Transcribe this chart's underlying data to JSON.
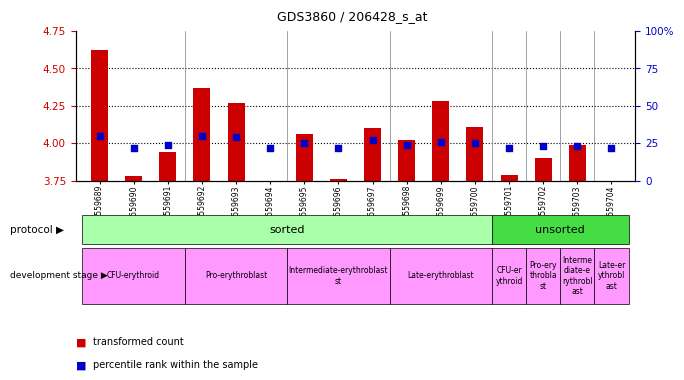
{
  "title": "GDS3860 / 206428_s_at",
  "samples": [
    "GSM559689",
    "GSM559690",
    "GSM559691",
    "GSM559692",
    "GSM559693",
    "GSM559694",
    "GSM559695",
    "GSM559696",
    "GSM559697",
    "GSM559698",
    "GSM559699",
    "GSM559700",
    "GSM559701",
    "GSM559702",
    "GSM559703",
    "GSM559704"
  ],
  "bar_values": [
    4.62,
    3.78,
    3.94,
    4.37,
    4.27,
    3.75,
    4.06,
    3.76,
    4.1,
    4.02,
    4.28,
    4.11,
    3.79,
    3.9,
    3.99,
    3.75
  ],
  "dot_values": [
    30,
    22,
    24,
    30,
    29,
    22,
    25,
    22,
    27,
    24,
    26,
    25,
    22,
    23,
    23,
    22
  ],
  "ylim": [
    3.75,
    4.75
  ],
  "y2lim": [
    0,
    100
  ],
  "yticks": [
    3.75,
    4.0,
    4.25,
    4.5,
    4.75
  ],
  "y2ticks": [
    0,
    25,
    50,
    75,
    100
  ],
  "bar_color": "#cc0000",
  "dot_color": "#0000cc",
  "bar_bottom": 3.75,
  "protocol_sorted_color": "#aaffaa",
  "protocol_unsorted_color": "#44dd44",
  "dev_stage_color": "#ff99ff",
  "legend_bar_label": "transformed count",
  "legend_dot_label": "percentile rank within the sample",
  "tick_color_left": "#cc0000",
  "tick_color_right": "#0000cc",
  "grid_dotted_at": [
    4.0,
    4.25,
    4.5
  ],
  "separators": [
    2.5,
    5.5,
    8.5,
    11.5,
    12.5,
    13.5,
    14.5
  ],
  "dev_stages": [
    {
      "label": "CFU-erythroid",
      "start": 0,
      "end": 2
    },
    {
      "label": "Pro-erythroblast",
      "start": 3,
      "end": 5
    },
    {
      "label": "Intermediate-erythroblast\nst",
      "start": 6,
      "end": 8
    },
    {
      "label": "Late-erythroblast",
      "start": 9,
      "end": 11
    },
    {
      "label": "CFU-er\nythroid",
      "start": 12,
      "end": 12
    },
    {
      "label": "Pro-ery\nthrobla\nst",
      "start": 13,
      "end": 13
    },
    {
      "label": "Interme\ndiate-e\nrythrobl\nast",
      "start": 14,
      "end": 14
    },
    {
      "label": "Late-er\nythrobl\nast",
      "start": 15,
      "end": 15
    }
  ]
}
